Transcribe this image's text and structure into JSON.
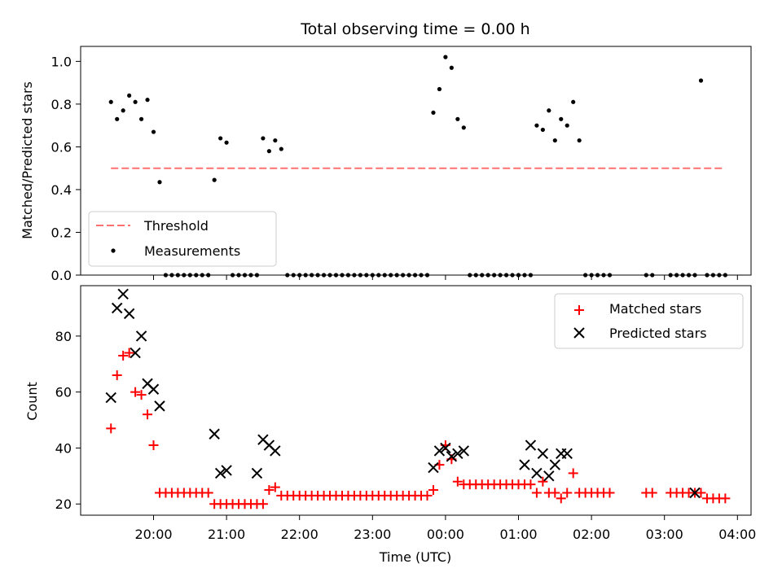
{
  "title": "Total observing time = 0.00 h",
  "colors": {
    "threshold": "#ff7070",
    "measurements": "#000000",
    "matched": "#ff0000",
    "predicted": "#000000"
  },
  "chart_data": [
    {
      "type": "scatter",
      "ylabel": "Matched/Predicted stars",
      "xlabel": "",
      "ylim": [
        0.0,
        1.07
      ],
      "y_ticks": [
        "0.0",
        "0.2",
        "0.4",
        "0.6",
        "0.8",
        "1.0"
      ],
      "legend_position": "lower-left",
      "series": [
        {
          "name": "Threshold",
          "kind": "dashed-line",
          "x": [
            "19:25",
            "23:59",
            "03:50"
          ],
          "y": [
            0.5,
            0.5,
            0.5
          ]
        },
        {
          "name": "Measurements",
          "kind": "points",
          "x": [
            "19:25",
            "19:30",
            "19:35",
            "19:40",
            "19:45",
            "19:50",
            "19:55",
            "20:00",
            "20:05",
            "20:10",
            "20:15",
            "20:20",
            "20:25",
            "20:30",
            "20:35",
            "20:40",
            "20:45",
            "20:50",
            "20:55",
            "21:00",
            "21:05",
            "21:10",
            "21:15",
            "21:20",
            "21:25",
            "21:30",
            "21:35",
            "21:40",
            "21:45",
            "21:50",
            "21:55",
            "22:00",
            "22:05",
            "22:10",
            "22:15",
            "22:20",
            "22:25",
            "22:30",
            "22:35",
            "22:40",
            "22:45",
            "22:50",
            "22:55",
            "23:00",
            "23:05",
            "23:10",
            "23:15",
            "23:20",
            "23:25",
            "23:30",
            "23:35",
            "23:40",
            "23:45",
            "23:50",
            "23:55",
            "00:00",
            "00:05",
            "00:10",
            "00:15",
            "00:20",
            "00:25",
            "00:30",
            "00:35",
            "00:40",
            "00:45",
            "00:50",
            "00:55",
            "01:00",
            "01:05",
            "01:10",
            "01:15",
            "01:20",
            "01:25",
            "01:30",
            "01:35",
            "01:40",
            "01:45",
            "01:50",
            "01:55",
            "02:00",
            "02:05",
            "02:10",
            "02:15",
            "02:45",
            "02:50",
            "03:05",
            "03:10",
            "03:15",
            "03:20",
            "03:25",
            "03:30",
            "03:35",
            "03:40",
            "03:45",
            "03:50"
          ],
          "y": [
            0.81,
            0.73,
            0.77,
            0.84,
            0.81,
            0.73,
            0.82,
            0.67,
            0.435,
            0.0,
            0.0,
            0.0,
            0.0,
            0.0,
            0.0,
            0.0,
            0.0,
            0.445,
            0.64,
            0.62,
            0.0,
            0.0,
            0.0,
            0.0,
            0.0,
            0.64,
            0.58,
            0.63,
            0.59,
            0.0,
            0.0,
            0.0,
            0.0,
            0.0,
            0.0,
            0.0,
            0.0,
            0.0,
            0.0,
            0.0,
            0.0,
            0.0,
            0.0,
            0.0,
            0.0,
            0.0,
            0.0,
            0.0,
            0.0,
            0.0,
            0.0,
            0.0,
            0.0,
            0.76,
            0.87,
            1.02,
            0.97,
            0.73,
            0.69,
            0.0,
            0.0,
            0.0,
            0.0,
            0.0,
            0.0,
            0.0,
            0.0,
            0.0,
            0.0,
            0.0,
            0.7,
            0.68,
            0.77,
            0.63,
            0.73,
            0.7,
            0.81,
            0.63,
            0.0,
            0.0,
            0.0,
            0.0,
            0.0,
            0.0,
            0.0,
            0.0,
            0.0,
            0.0,
            0.0,
            0.0,
            0.91,
            0.0,
            0.0,
            0.0,
            0.0
          ]
        }
      ]
    },
    {
      "type": "scatter",
      "ylabel": "Count",
      "xlabel": "Time (UTC)",
      "ylim": [
        16,
        98
      ],
      "y_ticks": [
        "20",
        "40",
        "60",
        "80"
      ],
      "x_ticks": [
        "20:00",
        "21:00",
        "22:00",
        "23:00",
        "00:00",
        "01:00",
        "02:00",
        "03:00",
        "04:00"
      ],
      "legend_position": "upper-right",
      "series": [
        {
          "name": "Matched stars",
          "kind": "plus",
          "x": [
            "19:25",
            "19:30",
            "19:35",
            "19:40",
            "19:45",
            "19:50",
            "19:55",
            "20:00",
            "20:05",
            "20:10",
            "20:15",
            "20:20",
            "20:25",
            "20:30",
            "20:35",
            "20:40",
            "20:45",
            "20:50",
            "20:55",
            "21:00",
            "21:05",
            "21:10",
            "21:15",
            "21:20",
            "21:25",
            "21:30",
            "21:35",
            "21:40",
            "21:45",
            "21:50",
            "21:55",
            "22:00",
            "22:05",
            "22:10",
            "22:15",
            "22:20",
            "22:25",
            "22:30",
            "22:35",
            "22:40",
            "22:45",
            "22:50",
            "22:55",
            "23:00",
            "23:05",
            "23:10",
            "23:15",
            "23:20",
            "23:25",
            "23:30",
            "23:35",
            "23:40",
            "23:45",
            "23:50",
            "23:55",
            "00:00",
            "00:05",
            "00:10",
            "00:15",
            "00:20",
            "00:25",
            "00:30",
            "00:35",
            "00:40",
            "00:45",
            "00:50",
            "00:55",
            "01:00",
            "01:05",
            "01:10",
            "01:15",
            "01:20",
            "01:25",
            "01:30",
            "01:35",
            "01:40",
            "01:45",
            "01:50",
            "01:55",
            "02:00",
            "02:05",
            "02:10",
            "02:15",
            "02:45",
            "02:50",
            "03:05",
            "03:10",
            "03:15",
            "03:20",
            "03:25",
            "03:30",
            "03:35",
            "03:40",
            "03:45",
            "03:50"
          ],
          "y": [
            47,
            66,
            73,
            74,
            60,
            59,
            52,
            41,
            24,
            24,
            24,
            24,
            24,
            24,
            24,
            24,
            24,
            20,
            20,
            20,
            20,
            20,
            20,
            20,
            20,
            20,
            25,
            26,
            23,
            23,
            23,
            23,
            23,
            23,
            23,
            23,
            23,
            23,
            23,
            23,
            23,
            23,
            23,
            23,
            23,
            23,
            23,
            23,
            23,
            23,
            23,
            23,
            23,
            25,
            34,
            41,
            36,
            28,
            27,
            27,
            27,
            27,
            27,
            27,
            27,
            27,
            27,
            27,
            27,
            27,
            24,
            28,
            24,
            24,
            22,
            24,
            31,
            24,
            24,
            24,
            24,
            24,
            24,
            24,
            24,
            24,
            24,
            24,
            24,
            24,
            24,
            22,
            22,
            22,
            22
          ]
        },
        {
          "name": "Predicted stars",
          "kind": "cross",
          "x": [
            "19:25",
            "19:30",
            "19:35",
            "19:40",
            "19:45",
            "19:50",
            "19:55",
            "20:00",
            "20:05",
            "20:50",
            "20:55",
            "21:00",
            "21:25",
            "21:30",
            "21:35",
            "21:40",
            "23:50",
            "23:55",
            "00:00",
            "00:05",
            "00:10",
            "00:15",
            "01:05",
            "01:10",
            "01:15",
            "01:20",
            "01:25",
            "01:30",
            "01:35",
            "01:40",
            "03:25"
          ],
          "y": [
            58,
            90,
            95,
            88,
            74,
            80,
            63,
            61,
            55,
            45,
            31,
            32,
            31,
            43,
            41,
            39,
            33,
            39,
            40,
            37,
            38,
            39,
            34,
            41,
            31,
            38,
            30,
            34,
            38,
            38,
            24
          ]
        }
      ]
    }
  ]
}
